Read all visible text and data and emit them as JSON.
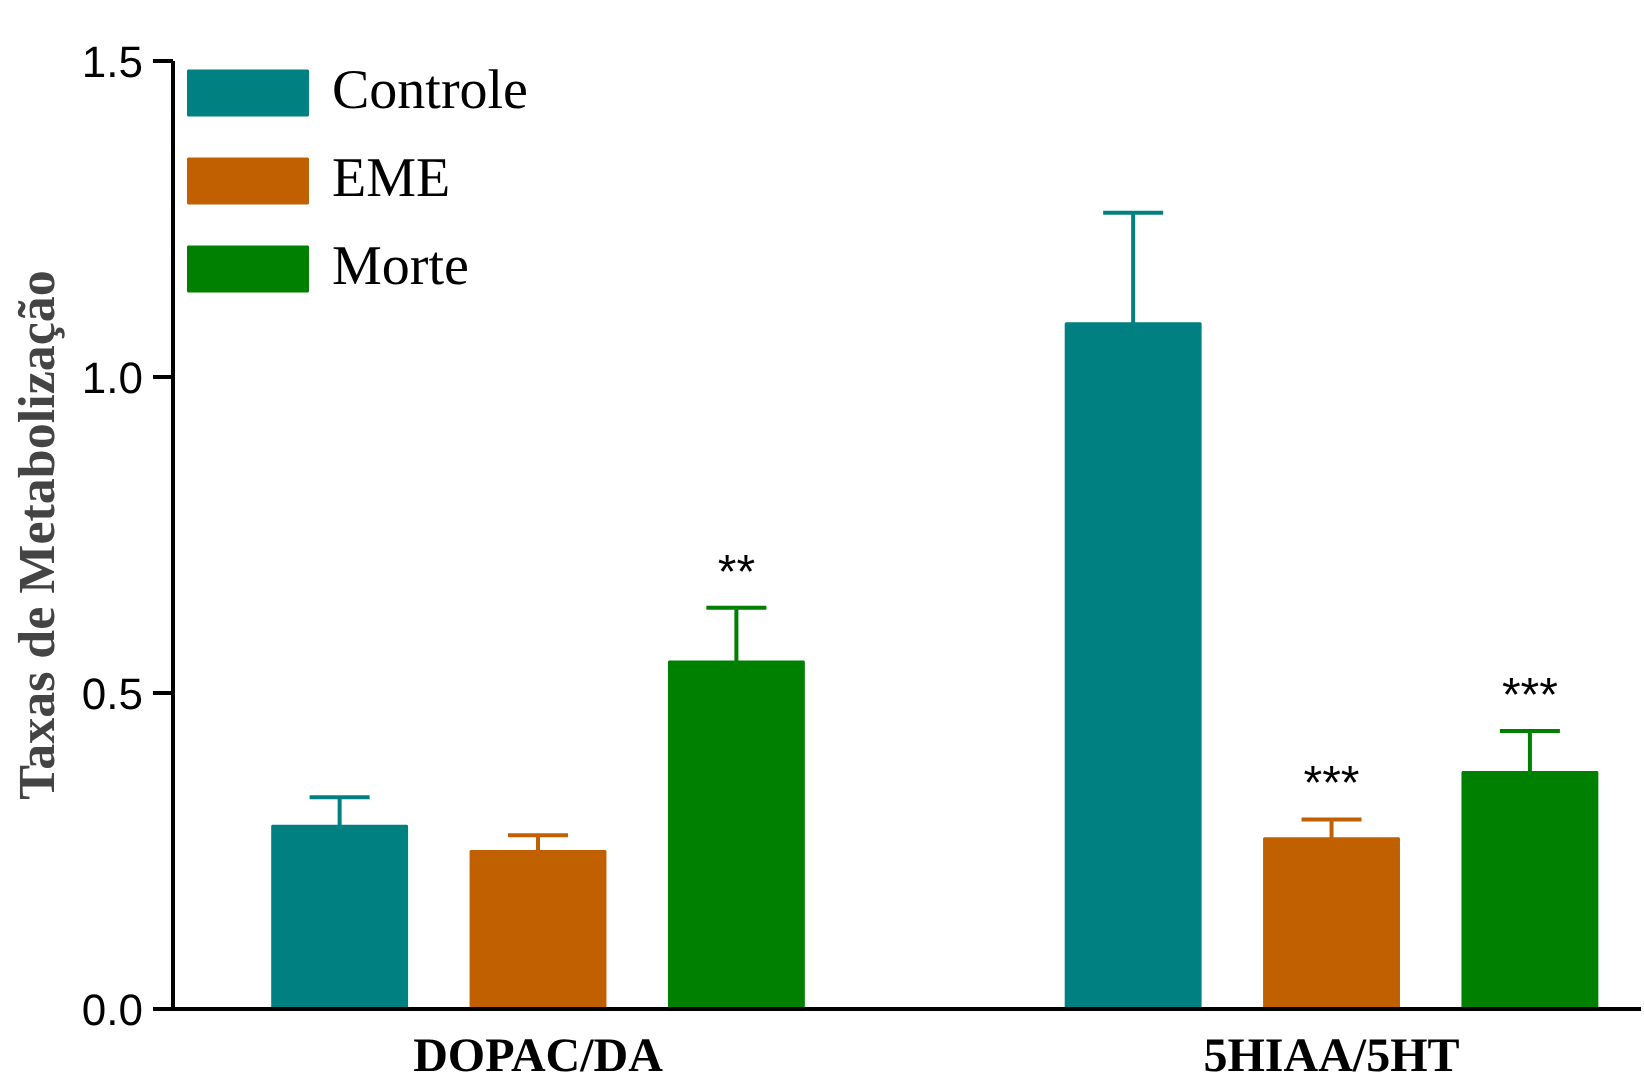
{
  "chart_data": {
    "type": "bar",
    "ylabel": "Taxas de Metabolização",
    "categories": [
      "DOPAC/DA",
      "5HIAA/5HT"
    ],
    "series": [
      {
        "name": "Controle",
        "color": "#008080",
        "values": [
          0.29,
          1.085
        ],
        "errors": [
          [
            0.29,
            0.335
          ],
          [
            1.085,
            1.26
          ]
        ],
        "value_labels": [
          null,
          null
        ]
      },
      {
        "name": "EME",
        "color": "#c06000",
        "values": [
          0.25,
          0.27
        ],
        "errors": [
          [
            0.25,
            0.275
          ],
          [
            0.27,
            0.3
          ]
        ],
        "value_labels": [
          null,
          "***"
        ]
      },
      {
        "name": "Morte",
        "color": "#008000",
        "values": [
          0.55,
          0.375
        ],
        "errors": [
          [
            0.55,
            0.635
          ],
          [
            0.375,
            0.44
          ]
        ],
        "value_labels": [
          "**",
          "***"
        ]
      }
    ],
    "ylim": [
      0,
      1.5
    ],
    "yticks": [
      {
        "value": 0,
        "label": "0.0"
      },
      {
        "value": 0.5,
        "label": "0.5"
      },
      {
        "value": 1,
        "label": "1.0"
      },
      {
        "value": 1.5,
        "label": "1.5"
      }
    ],
    "grid": false,
    "legend": "top left"
  }
}
